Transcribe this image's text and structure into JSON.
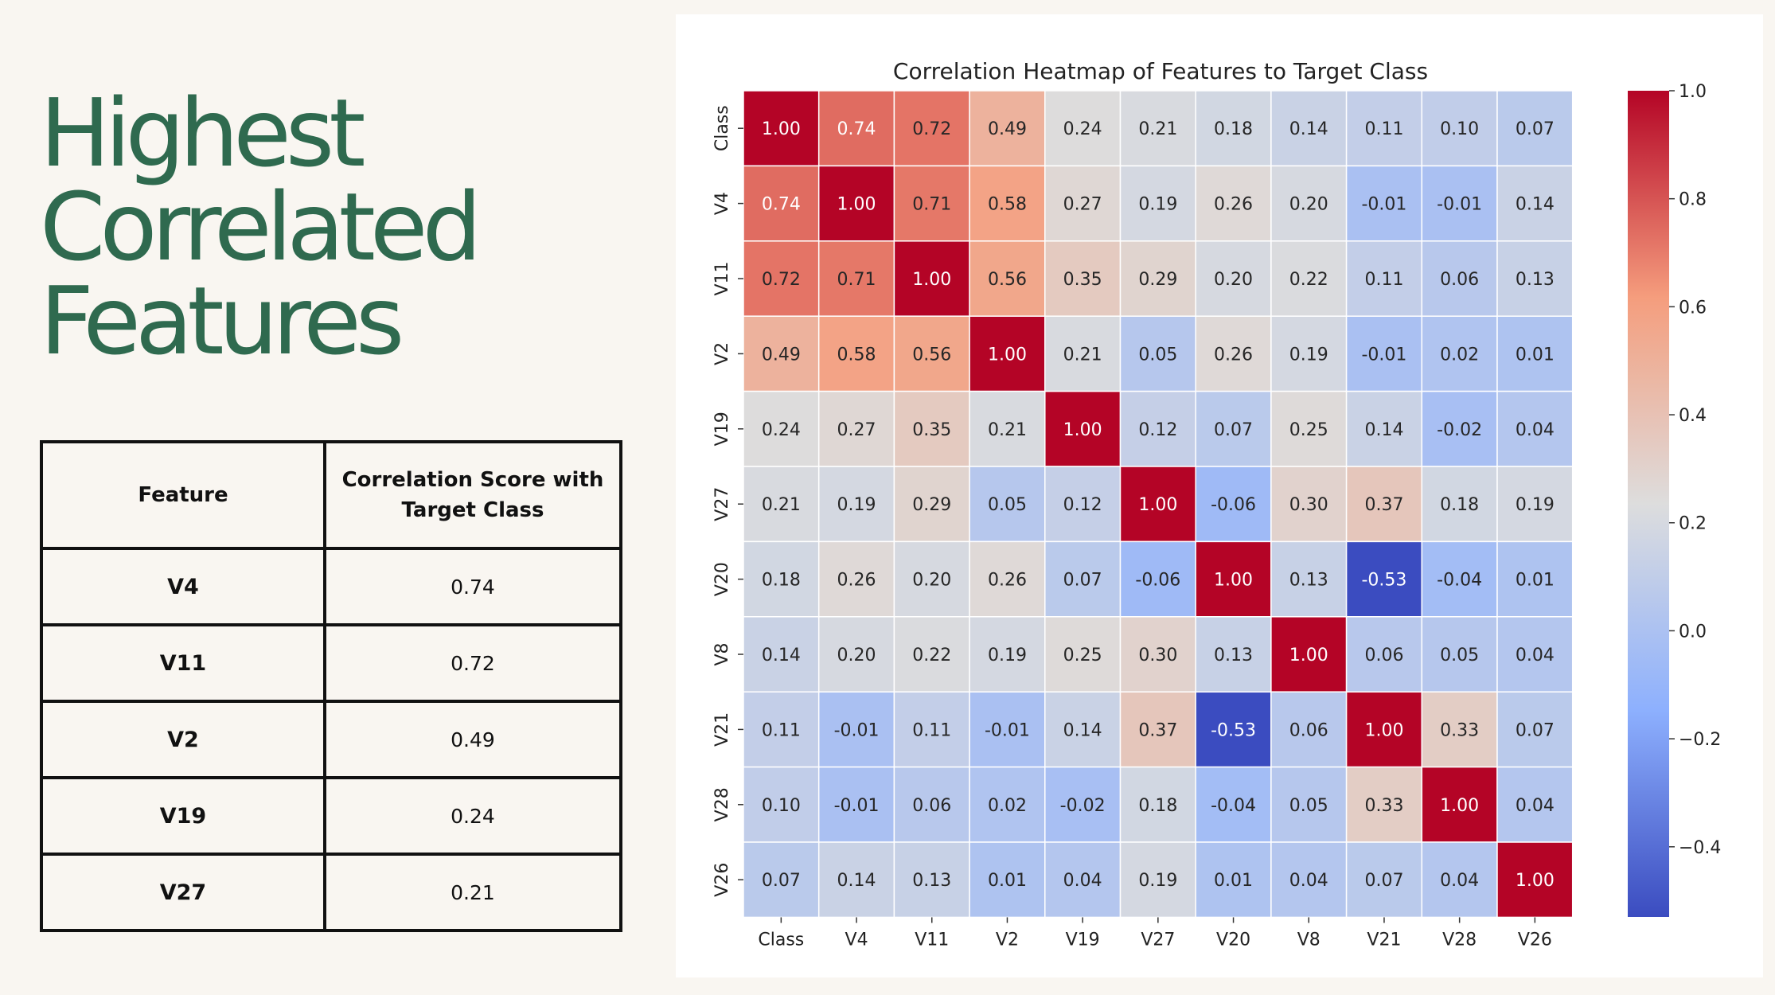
{
  "heading": {
    "lines": [
      "Highest",
      "Correlated",
      "Features"
    ]
  },
  "feature_table": {
    "headers": [
      "Feature",
      "Correlation Score with Target Class"
    ],
    "rows": [
      {
        "feature": "V4",
        "score": "0.74"
      },
      {
        "feature": "V11",
        "score": "0.72"
      },
      {
        "feature": "V2",
        "score": "0.49"
      },
      {
        "feature": "V19",
        "score": "0.24"
      },
      {
        "feature": "V27",
        "score": "0.21"
      }
    ]
  },
  "chart_data": {
    "type": "heatmap",
    "title": "Correlation Heatmap of Features to Target Class",
    "x_labels": [
      "Class",
      "V4",
      "V11",
      "V2",
      "V19",
      "V27",
      "V20",
      "V8",
      "V21",
      "V28",
      "V26"
    ],
    "y_labels": [
      "Class",
      "V4",
      "V11",
      "V2",
      "V19",
      "V27",
      "V20",
      "V8",
      "V21",
      "V28",
      "V26"
    ],
    "values": [
      [
        1.0,
        0.74,
        0.72,
        0.49,
        0.24,
        0.21,
        0.18,
        0.14,
        0.11,
        0.1,
        0.07
      ],
      [
        0.74,
        1.0,
        0.71,
        0.58,
        0.27,
        0.19,
        0.26,
        0.2,
        -0.01,
        -0.01,
        0.14
      ],
      [
        0.72,
        0.71,
        1.0,
        0.56,
        0.35,
        0.29,
        0.2,
        0.22,
        0.11,
        0.06,
        0.13
      ],
      [
        0.49,
        0.58,
        0.56,
        1.0,
        0.21,
        0.05,
        0.26,
        0.19,
        -0.01,
        0.02,
        0.01
      ],
      [
        0.24,
        0.27,
        0.35,
        0.21,
        1.0,
        0.12,
        0.07,
        0.25,
        0.14,
        -0.02,
        0.04
      ],
      [
        0.21,
        0.19,
        0.29,
        0.05,
        0.12,
        1.0,
        -0.06,
        0.3,
        0.37,
        0.18,
        0.19
      ],
      [
        0.18,
        0.26,
        0.2,
        0.26,
        0.07,
        -0.06,
        1.0,
        0.13,
        -0.53,
        -0.04,
        0.01
      ],
      [
        0.14,
        0.2,
        0.22,
        0.19,
        0.25,
        0.3,
        0.13,
        1.0,
        0.06,
        0.05,
        0.04
      ],
      [
        0.11,
        -0.01,
        0.11,
        -0.01,
        0.14,
        0.37,
        -0.53,
        0.06,
        1.0,
        0.33,
        0.07
      ],
      [
        0.1,
        -0.01,
        0.06,
        0.02,
        -0.02,
        0.18,
        -0.04,
        0.05,
        0.33,
        1.0,
        0.04
      ],
      [
        0.07,
        0.14,
        0.13,
        0.01,
        0.04,
        0.19,
        0.01,
        0.04,
        0.07,
        0.04,
        1.0
      ]
    ],
    "colormap": "coolwarm",
    "color_range": [
      -0.53,
      1.0
    ],
    "colorbar_ticks": [
      1.0,
      0.8,
      0.6,
      0.4,
      0.2,
      0.0,
      -0.2,
      -0.4
    ],
    "colorbar_tick_labels": [
      "1.0",
      "0.8",
      "0.6",
      "0.4",
      "0.2",
      "0.0",
      "−0.2",
      "−0.4"
    ],
    "annotation_format": "2 decimals",
    "grid": true
  }
}
